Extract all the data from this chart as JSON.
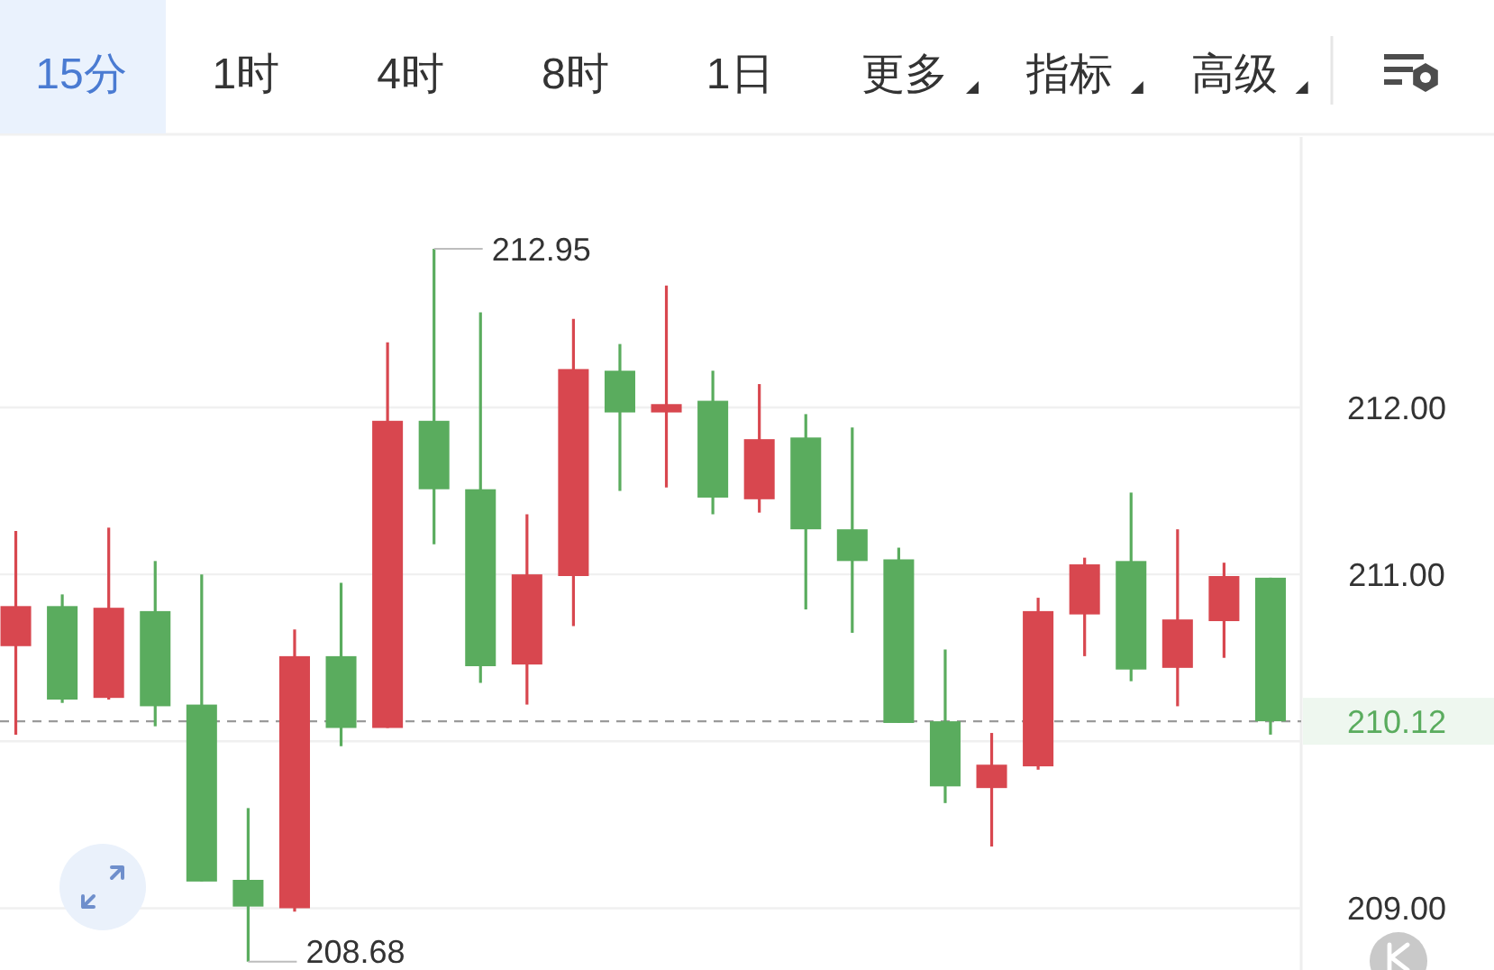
{
  "chart_data": {
    "type": "candlestick",
    "categories": [
      null,
      null,
      null,
      null,
      null,
      null,
      null,
      null,
      null,
      null,
      null,
      null,
      null,
      null,
      null,
      null,
      null,
      null,
      null,
      null,
      null,
      null,
      null,
      null,
      null,
      null,
      null,
      null
    ],
    "ohlc": [
      [
        210.57,
        211.26,
        210.04,
        210.81
      ],
      [
        210.81,
        210.88,
        210.23,
        210.25
      ],
      [
        210.26,
        211.28,
        210.25,
        210.8
      ],
      [
        210.78,
        211.08,
        210.09,
        210.21
      ],
      [
        210.22,
        211.0,
        209.16,
        209.16
      ],
      [
        209.17,
        209.6,
        208.68,
        209.01
      ],
      [
        209.0,
        210.67,
        208.98,
        210.51
      ],
      [
        210.51,
        210.95,
        209.97,
        210.08
      ],
      [
        210.08,
        212.39,
        210.08,
        211.92
      ],
      [
        211.92,
        212.95,
        211.18,
        211.51
      ],
      [
        211.51,
        212.57,
        210.35,
        210.45
      ],
      [
        210.46,
        211.36,
        210.22,
        211.0
      ],
      [
        210.99,
        212.53,
        210.69,
        212.23
      ],
      [
        212.22,
        212.38,
        211.5,
        211.97
      ],
      [
        211.97,
        212.73,
        211.52,
        212.02
      ],
      [
        212.04,
        212.22,
        211.36,
        211.46
      ],
      [
        211.45,
        212.14,
        211.37,
        211.81
      ],
      [
        211.82,
        211.96,
        210.79,
        211.27
      ],
      [
        211.27,
        211.88,
        210.65,
        211.08
      ],
      [
        211.09,
        211.16,
        210.11,
        210.11
      ],
      [
        210.12,
        210.55,
        209.63,
        209.73
      ],
      [
        209.72,
        210.05,
        209.37,
        209.86
      ],
      [
        209.85,
        210.86,
        209.83,
        210.78
      ],
      [
        210.76,
        211.1,
        210.51,
        211.06
      ],
      [
        211.08,
        211.49,
        210.36,
        210.43
      ],
      [
        210.44,
        211.27,
        210.21,
        210.73
      ],
      [
        210.72,
        211.07,
        210.5,
        210.99
      ],
      [
        210.98,
        210.98,
        210.04,
        210.12
      ]
    ],
    "colors": [
      "#d8474f",
      "#5aac5e",
      "#d8474f",
      "#5aac5e",
      "#5aac5e",
      "#5aac5e",
      "#d8474f",
      "#5aac5e",
      "#d8474f",
      "#5aac5e",
      "#5aac5e",
      "#d8474f",
      "#d8474f",
      "#5aac5e",
      "#d8474f",
      "#5aac5e",
      "#d8474f",
      "#5aac5e",
      "#5aac5e",
      "#5aac5e",
      "#5aac5e",
      "#d8474f",
      "#d8474f",
      "#d8474f",
      "#5aac5e",
      "#d8474f",
      "#d8474f",
      "#5aac5e"
    ],
    "ylim": [
      208.63,
      213.62
    ],
    "yticks": [
      {
        "value": 212,
        "label": "212.00"
      },
      {
        "value": 211,
        "label": "211.00"
      },
      {
        "value": 210,
        "label": null
      },
      {
        "value": 209,
        "label": "209.00"
      }
    ],
    "grid": "y",
    "tick_labels": "y",
    "ref_lines": [
      {
        "axis": "y",
        "value": 210.12,
        "label": "210.12",
        "color": "#9a9a9a",
        "line_style": "dashed"
      }
    ],
    "annotations": [
      "15分",
      "1时",
      "4时",
      "8时",
      "1日",
      "更多",
      "指标",
      "高级",
      "212.95",
      "208.68"
    ]
  }
}
